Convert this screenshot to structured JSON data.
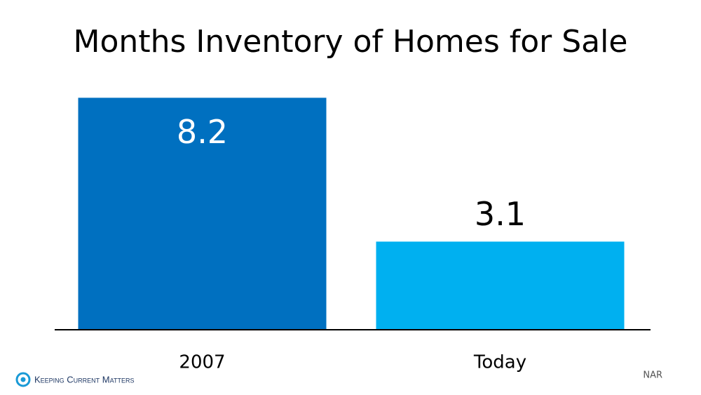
{
  "chart_data": {
    "type": "bar",
    "title": "Months Inventory of Homes for Sale",
    "categories": [
      "2007",
      "Today"
    ],
    "values": [
      8.2,
      3.1
    ],
    "colors": [
      "#0070c0",
      "#00b0f0"
    ],
    "source": "NAR",
    "logo": "Keeping Current Matters"
  }
}
